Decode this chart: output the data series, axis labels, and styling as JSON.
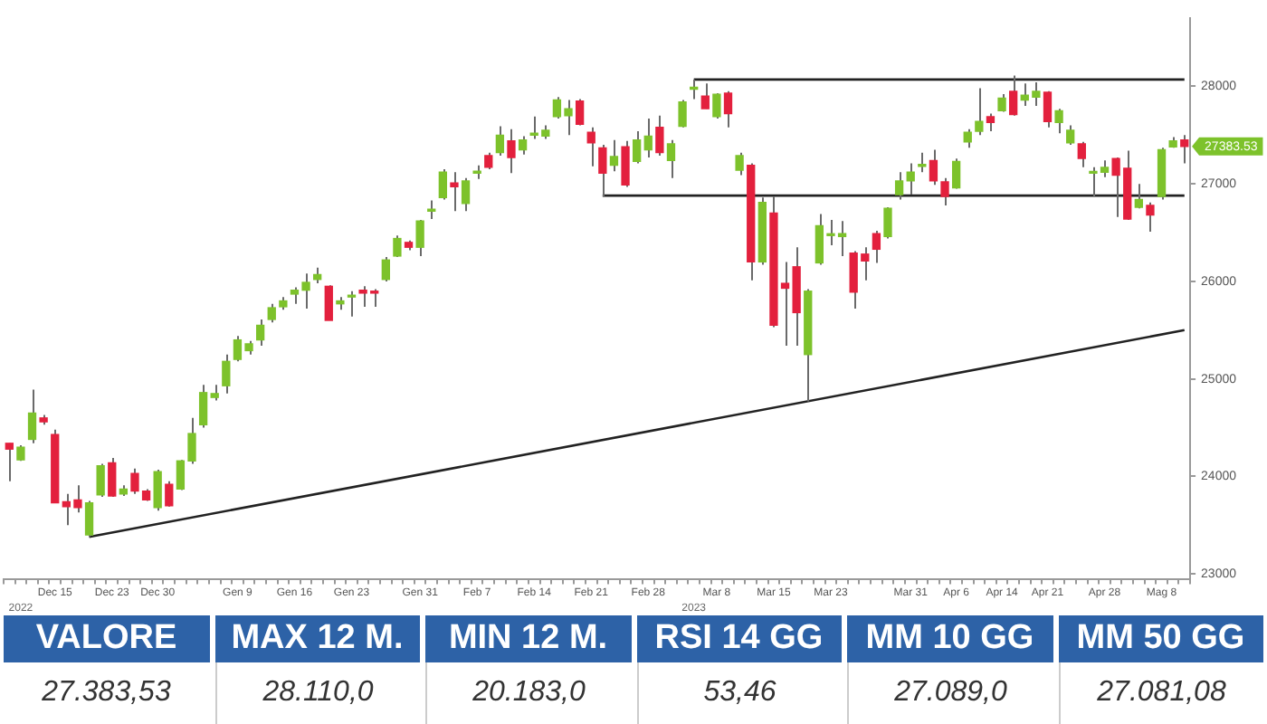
{
  "chart_data": {
    "type": "candlestick",
    "categories": [
      null,
      null,
      null,
      null,
      "Dec 15",
      null,
      null,
      null,
      null,
      "Dec 23",
      null,
      null,
      null,
      "Dec 30",
      null,
      null,
      null,
      null,
      null,
      null,
      "Gen 9",
      null,
      null,
      null,
      null,
      "Gen 16",
      null,
      null,
      null,
      null,
      "Gen 23",
      null,
      null,
      null,
      null,
      null,
      "Gen 31",
      null,
      null,
      null,
      null,
      "Feb 7",
      null,
      null,
      null,
      null,
      "Feb 14",
      null,
      null,
      null,
      null,
      "Feb 21",
      null,
      null,
      null,
      null,
      "Feb 28",
      null,
      null,
      null,
      null,
      null,
      "Mar 8",
      null,
      null,
      null,
      null,
      "Mar 15",
      null,
      null,
      null,
      null,
      "Mar 23",
      null,
      null,
      null,
      null,
      null,
      null,
      "Mar 31",
      null,
      null,
      null,
      "Apr 6",
      null,
      null,
      null,
      "Apr 14",
      null,
      null,
      null,
      "Apr 21",
      null,
      null,
      null,
      null,
      "Apr 28",
      null,
      null,
      null,
      null,
      "Mag 8",
      null,
      null
    ],
    "ohlc": [
      [
        24340,
        24340,
        23950,
        24280
      ],
      [
        24170,
        24320,
        24160,
        24300
      ],
      [
        24380,
        24890,
        24340,
        24650
      ],
      [
        24600,
        24630,
        24530,
        24560
      ],
      [
        24430,
        24480,
        23730,
        23730
      ],
      [
        23740,
        23820,
        23500,
        23690
      ],
      [
        23760,
        23910,
        23630,
        23680
      ],
      [
        23400,
        23750,
        23380,
        23730
      ],
      [
        23810,
        24130,
        23790,
        24110
      ],
      [
        24140,
        24190,
        23790,
        23800
      ],
      [
        23820,
        23910,
        23800,
        23870
      ],
      [
        24030,
        24080,
        23820,
        23850
      ],
      [
        23850,
        23870,
        23750,
        23760
      ],
      [
        23680,
        24070,
        23650,
        24050
      ],
      [
        23920,
        23950,
        23690,
        23700
      ],
      [
        23870,
        24170,
        23860,
        24160
      ],
      [
        24160,
        24600,
        24130,
        24440
      ],
      [
        24530,
        24940,
        24500,
        24860
      ],
      [
        24810,
        24940,
        24780,
        24850
      ],
      [
        24930,
        25250,
        24850,
        25180
      ],
      [
        25200,
        25440,
        25180,
        25400
      ],
      [
        25290,
        25390,
        25250,
        25360
      ],
      [
        25400,
        25610,
        25340,
        25550
      ],
      [
        25610,
        25770,
        25580,
        25730
      ],
      [
        25740,
        25840,
        25710,
        25800
      ],
      [
        25870,
        25940,
        25770,
        25910
      ],
      [
        25910,
        26080,
        25720,
        25990
      ],
      [
        26020,
        26140,
        25980,
        26070
      ],
      [
        25950,
        25960,
        25600,
        25600
      ],
      [
        25770,
        25840,
        25710,
        25800
      ],
      [
        25840,
        25900,
        25640,
        25850
      ],
      [
        25910,
        25950,
        25740,
        25880
      ],
      [
        25900,
        25920,
        25740,
        25880
      ],
      [
        26020,
        26250,
        26000,
        26220
      ],
      [
        26260,
        26470,
        26250,
        26440
      ],
      [
        26400,
        26420,
        26320,
        26350
      ],
      [
        26350,
        26630,
        26260,
        26620
      ],
      [
        26720,
        26830,
        26640,
        26740
      ],
      [
        26860,
        27150,
        26840,
        27120
      ],
      [
        27010,
        27120,
        26720,
        26970
      ],
      [
        26800,
        27060,
        26720,
        27030
      ],
      [
        27110,
        27190,
        27050,
        27130
      ],
      [
        27290,
        27320,
        27150,
        27170
      ],
      [
        27320,
        27590,
        27290,
        27500
      ],
      [
        27440,
        27560,
        27110,
        27270
      ],
      [
        27350,
        27490,
        27300,
        27450
      ],
      [
        27500,
        27690,
        27460,
        27520
      ],
      [
        27490,
        27600,
        27460,
        27550
      ],
      [
        27690,
        27890,
        27670,
        27860
      ],
      [
        27700,
        27860,
        27500,
        27770
      ],
      [
        27850,
        27870,
        27600,
        27610
      ],
      [
        27530,
        27580,
        27180,
        27420
      ],
      [
        27370,
        27400,
        26870,
        27110
      ],
      [
        27190,
        27450,
        27130,
        27280
      ],
      [
        27380,
        27440,
        26970,
        26990
      ],
      [
        27230,
        27540,
        27210,
        27450
      ],
      [
        27350,
        27670,
        27270,
        27490
      ],
      [
        27580,
        27700,
        27290,
        27320
      ],
      [
        27240,
        27450,
        27060,
        27410
      ],
      [
        27590,
        27860,
        27580,
        27840
      ],
      [
        27970,
        28070,
        27870,
        27990
      ],
      [
        27900,
        28030,
        27770,
        27770
      ],
      [
        27690,
        27930,
        27670,
        27920
      ],
      [
        27930,
        27950,
        27580,
        27720
      ],
      [
        27140,
        27320,
        27090,
        27290
      ],
      [
        27190,
        27210,
        26010,
        26200
      ],
      [
        26200,
        26860,
        26170,
        26810
      ],
      [
        26700,
        26870,
        25530,
        25550
      ],
      [
        25980,
        26200,
        25340,
        25930
      ],
      [
        26150,
        26350,
        25340,
        25680
      ],
      [
        25250,
        25920,
        24770,
        25900
      ],
      [
        26190,
        26690,
        26170,
        26570
      ],
      [
        26470,
        26630,
        26370,
        26480
      ],
      [
        26460,
        26620,
        26260,
        26490
      ],
      [
        26290,
        26310,
        25720,
        25890
      ],
      [
        26280,
        26350,
        26010,
        26210
      ],
      [
        26490,
        26520,
        26190,
        26330
      ],
      [
        26460,
        26760,
        26440,
        26750
      ],
      [
        26890,
        27120,
        26840,
        27030
      ],
      [
        27030,
        27210,
        26890,
        27120
      ],
      [
        27180,
        27320,
        27120,
        27200
      ],
      [
        27240,
        27350,
        26990,
        27030
      ],
      [
        27020,
        27060,
        26780,
        26870
      ],
      [
        26960,
        27260,
        26950,
        27230
      ],
      [
        27430,
        27560,
        27370,
        27530
      ],
      [
        27540,
        27980,
        27500,
        27640
      ],
      [
        27690,
        27720,
        27540,
        27630
      ],
      [
        27750,
        27920,
        27740,
        27880
      ],
      [
        27950,
        28110,
        27700,
        27710
      ],
      [
        27860,
        28030,
        27800,
        27910
      ],
      [
        27890,
        28040,
        27800,
        27950
      ],
      [
        27940,
        27950,
        27580,
        27640
      ],
      [
        27630,
        27770,
        27520,
        27750
      ],
      [
        27420,
        27600,
        27400,
        27550
      ],
      [
        27410,
        27430,
        27170,
        27260
      ],
      [
        27110,
        27170,
        26870,
        27120
      ],
      [
        27120,
        27240,
        27070,
        27170
      ],
      [
        27260,
        27270,
        26660,
        27090
      ],
      [
        27160,
        27340,
        26630,
        26640
      ],
      [
        26760,
        27000,
        26750,
        26840
      ],
      [
        26780,
        26810,
        26510,
        26680
      ],
      [
        26870,
        27370,
        26840,
        27350
      ],
      [
        27380,
        27480,
        27370,
        27440
      ],
      [
        27450,
        27500,
        27210,
        27383.53
      ]
    ],
    "colors": [
      "#e3203d",
      "#7dc22b",
      "#7dc22b",
      "#e3203d",
      "#e3203d",
      "#e3203d",
      "#e3203d",
      "#7dc22b",
      "#7dc22b",
      "#e3203d",
      "#7dc22b",
      "#e3203d",
      "#e3203d",
      "#7dc22b",
      "#e3203d",
      "#7dc22b",
      "#7dc22b",
      "#7dc22b",
      "#7dc22b",
      "#7dc22b",
      "#7dc22b",
      "#7dc22b",
      "#7dc22b",
      "#7dc22b",
      "#7dc22b",
      "#7dc22b",
      "#7dc22b",
      "#7dc22b",
      "#e3203d",
      "#7dc22b",
      "#7dc22b",
      "#e3203d",
      "#e3203d",
      "#7dc22b",
      "#7dc22b",
      "#e3203d",
      "#7dc22b",
      "#7dc22b",
      "#7dc22b",
      "#e3203d",
      "#7dc22b",
      "#7dc22b",
      "#e3203d",
      "#7dc22b",
      "#e3203d",
      "#7dc22b",
      "#7dc22b",
      "#7dc22b",
      "#7dc22b",
      "#7dc22b",
      "#e3203d",
      "#e3203d",
      "#e3203d",
      "#7dc22b",
      "#e3203d",
      "#7dc22b",
      "#7dc22b",
      "#e3203d",
      "#7dc22b",
      "#7dc22b",
      "#7dc22b",
      "#e3203d",
      "#7dc22b",
      "#e3203d",
      "#7dc22b",
      "#e3203d",
      "#7dc22b",
      "#e3203d",
      "#e3203d",
      "#e3203d",
      "#7dc22b",
      "#7dc22b",
      "#7dc22b",
      "#7dc22b",
      "#e3203d",
      "#e3203d",
      "#e3203d",
      "#7dc22b",
      "#7dc22b",
      "#7dc22b",
      "#7dc22b",
      "#e3203d",
      "#e3203d",
      "#7dc22b",
      "#7dc22b",
      "#7dc22b",
      "#e3203d",
      "#7dc22b",
      "#e3203d",
      "#7dc22b",
      "#7dc22b",
      "#e3203d",
      "#7dc22b",
      "#7dc22b",
      "#e3203d",
      "#7dc22b",
      "#7dc22b",
      "#e3203d",
      "#e3203d",
      "#7dc22b",
      "#e3203d",
      "#7dc22b",
      "#7dc22b",
      "#e3203d"
    ],
    "series": [
      {
        "type": "line",
        "color": "#222222",
        "values": [
          null,
          null,
          null,
          null,
          null,
          null,
          null,
          23380,
          null,
          null,
          null,
          null,
          null,
          null,
          null,
          null,
          null,
          null,
          null,
          null,
          null,
          null,
          null,
          null,
          null,
          null,
          null,
          null,
          null,
          null,
          null,
          null,
          null,
          null,
          null,
          null,
          null,
          null,
          null,
          null,
          null,
          null,
          null,
          null,
          null,
          null,
          null,
          null,
          null,
          null,
          null,
          null,
          null,
          null,
          null,
          null,
          null,
          null,
          null,
          null,
          null,
          null,
          null,
          null,
          null,
          null,
          null,
          null,
          null,
          null,
          null,
          null,
          null,
          null,
          null,
          null,
          null,
          null,
          null,
          null,
          null,
          null,
          null,
          null,
          null,
          null,
          null,
          null,
          null,
          null,
          null,
          null,
          null,
          null,
          null,
          null,
          null,
          null,
          null,
          null,
          null,
          null,
          null,
          25500
        ]
      },
      {
        "type": "line",
        "color": "#222222",
        "values": [
          null,
          null,
          null,
          null,
          null,
          null,
          null,
          null,
          null,
          null,
          null,
          null,
          null,
          null,
          null,
          null,
          null,
          null,
          null,
          null,
          null,
          null,
          null,
          null,
          null,
          null,
          null,
          null,
          null,
          null,
          null,
          null,
          null,
          null,
          null,
          null,
          null,
          null,
          null,
          null,
          null,
          null,
          null,
          null,
          null,
          null,
          null,
          null,
          null,
          null,
          null,
          null,
          null,
          null,
          null,
          null,
          null,
          null,
          null,
          null,
          28070,
          null,
          null,
          null,
          null,
          null,
          null,
          null,
          null,
          null,
          null,
          null,
          null,
          null,
          null,
          null,
          null,
          null,
          null,
          null,
          null,
          null,
          null,
          null,
          null,
          null,
          null,
          null,
          null,
          null,
          null,
          null,
          null,
          null,
          null,
          null,
          null,
          null,
          null,
          null,
          null,
          null,
          null,
          28070
        ]
      },
      {
        "type": "line",
        "color": "#222222",
        "values": [
          null,
          null,
          null,
          null,
          null,
          null,
          null,
          null,
          null,
          null,
          null,
          null,
          null,
          null,
          null,
          null,
          null,
          null,
          null,
          null,
          null,
          null,
          null,
          null,
          null,
          null,
          null,
          null,
          null,
          null,
          null,
          null,
          null,
          null,
          null,
          null,
          null,
          null,
          null,
          null,
          null,
          null,
          null,
          null,
          null,
          null,
          null,
          null,
          null,
          null,
          null,
          null,
          26880,
          null,
          null,
          null,
          null,
          null,
          null,
          null,
          null,
          null,
          null,
          null,
          null,
          null,
          null,
          null,
          null,
          null,
          null,
          null,
          null,
          null,
          null,
          null,
          null,
          null,
          null,
          null,
          null,
          null,
          null,
          null,
          null,
          null,
          null,
          null,
          null,
          null,
          null,
          null,
          null,
          null,
          null,
          null,
          null,
          null,
          null,
          null,
          null,
          null,
          null,
          26880
        ]
      }
    ],
    "ylim": [
      22950,
      28700
    ],
    "yticks": [
      23000,
      24000,
      25000,
      26000,
      27000,
      28000
    ],
    "legend": false,
    "annotations": [
      "2022",
      "2023",
      "27383.53",
      "VALORE",
      "MAX 12 M.",
      "MIN 12 M.",
      "RSI 14 GG",
      "MM 10 GG",
      "MM 50 GG",
      "27.383,53",
      "28.110,0",
      "20.183,0",
      "53,46",
      "27.089,0",
      "27.081,08"
    ]
  }
}
